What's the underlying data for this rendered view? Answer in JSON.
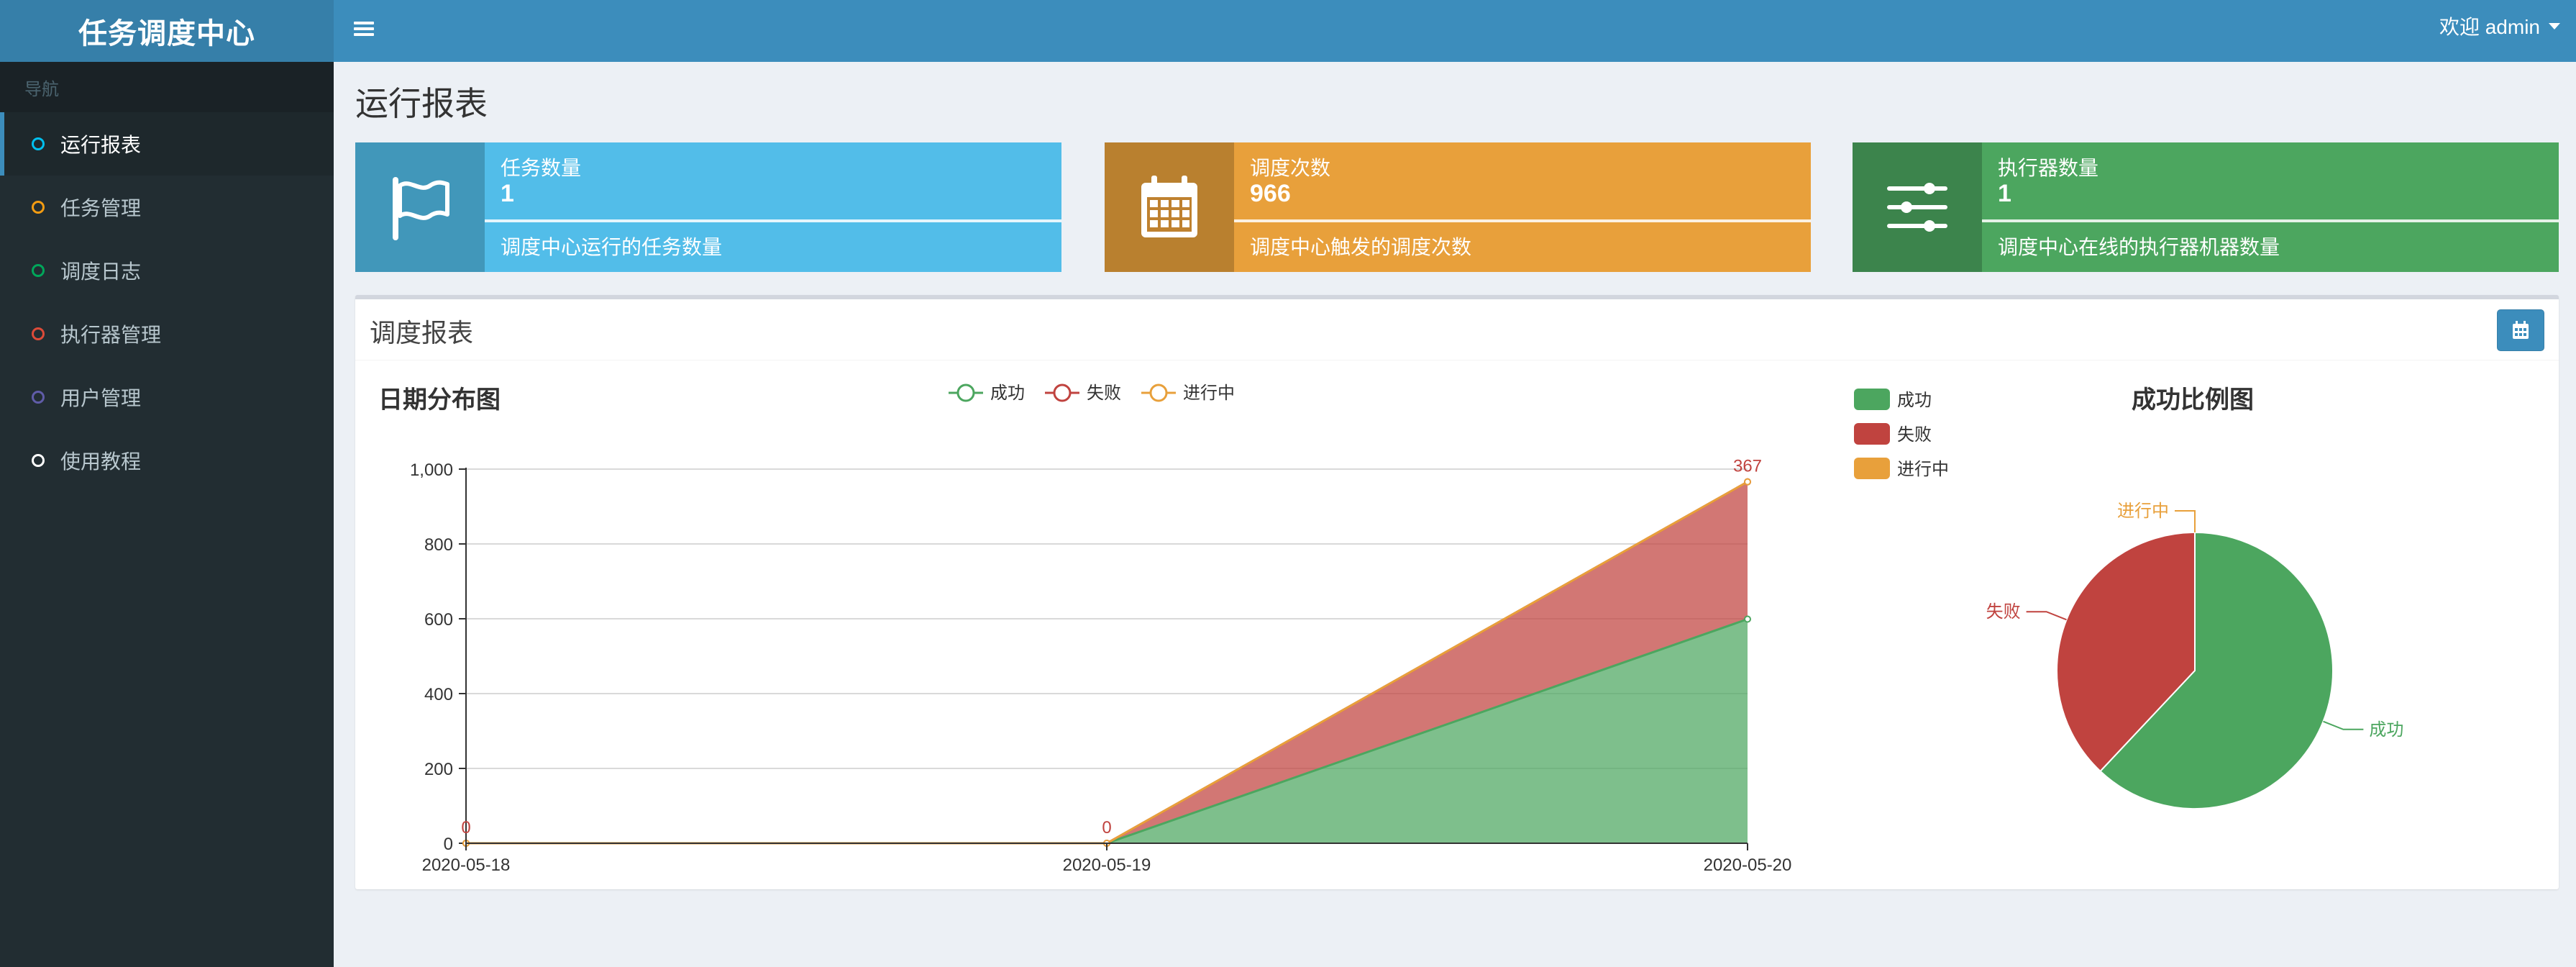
{
  "app": {
    "title": "任务调度中心"
  },
  "topbar": {
    "user_greeting": "欢迎 admin"
  },
  "sidebar": {
    "header": "导航",
    "items": [
      {
        "label": "运行报表",
        "color": "#00c0ef",
        "active": true
      },
      {
        "label": "任务管理",
        "color": "#f39c12"
      },
      {
        "label": "调度日志",
        "color": "#00a65a"
      },
      {
        "label": "执行器管理",
        "color": "#dd4b39"
      },
      {
        "label": "用户管理",
        "color": "#605ca8"
      },
      {
        "label": "使用教程",
        "color": "#ffffff"
      }
    ]
  },
  "page": {
    "title": "运行报表"
  },
  "info_boxes": [
    {
      "label": "任务数量",
      "value": "1",
      "description": "调度中心运行的任务数量",
      "color": "#52bde9",
      "icon": "flag-icon"
    },
    {
      "label": "调度次数",
      "value": "966",
      "description": "调度中心触发的调度次数",
      "color": "#e8a03b",
      "icon": "calendar-icon"
    },
    {
      "label": "执行器数量",
      "value": "1",
      "description": "调度中心在线的执行器机器数量",
      "color": "#4ca65f",
      "icon": "sliders-icon"
    }
  ],
  "report": {
    "title": "调度报表"
  },
  "chart_data": [
    {
      "type": "area",
      "title": "日期分布图",
      "categories": [
        "2020-05-18",
        "2020-05-19",
        "2020-05-20"
      ],
      "stacked": true,
      "series": [
        {
          "name": "成功",
          "values": [
            0,
            0,
            599
          ],
          "color": "#4ca65f"
        },
        {
          "name": "失败",
          "values": [
            0,
            0,
            367
          ],
          "color": "#c0433f"
        },
        {
          "name": "进行中",
          "values": [
            0,
            0,
            0
          ],
          "color": "#e8a03b"
        }
      ],
      "ylim": [
        0,
        1000
      ],
      "yticks": [
        "0",
        "200",
        "400",
        "600",
        "800",
        "1,000"
      ],
      "data_labels": [
        {
          "text": "0",
          "series": "失败",
          "index": 0
        },
        {
          "text": "0",
          "series": "失败",
          "index": 1
        },
        {
          "text": "367",
          "series": "失败",
          "index": 2
        }
      ],
      "legend": "top-center",
      "grid": true
    },
    {
      "type": "pie",
      "title": "成功比例图",
      "labels": [
        "成功",
        "失败",
        "进行中"
      ],
      "values": [
        599,
        367,
        0
      ],
      "colors": [
        "#4ca65f",
        "#c0433f",
        "#e8a03b"
      ],
      "legend": "top-left"
    }
  ]
}
